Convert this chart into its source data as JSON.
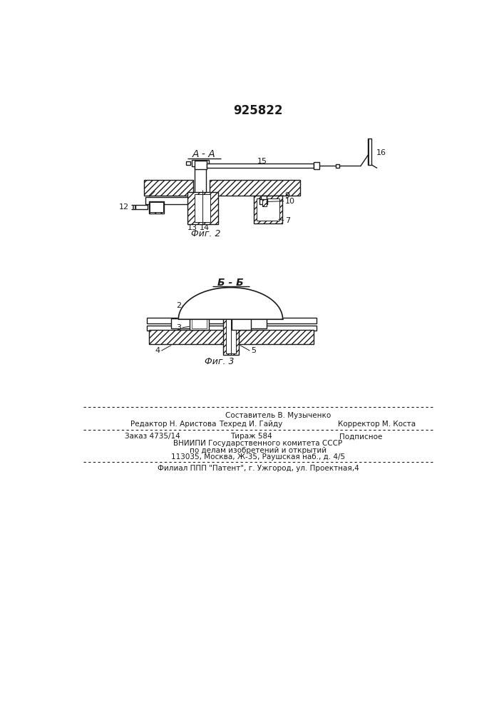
{
  "patent_number": "925822",
  "fig2_label": "А - А",
  "fig2_caption": "Фиг. 2",
  "fig3_label": "Б - Б",
  "fig3_caption": "Фиг. 3",
  "footer_comp": "Составитель В. Музыченко",
  "footer_editor": "Редактор Н. Аристова",
  "footer_tech": "Техред И. Гайду",
  "footer_corr": "Корректор М. Коста",
  "footer_order": "Заказ 4735/14",
  "footer_tirazh": "Тираж 584",
  "footer_podp": "Подписное",
  "footer_vniip1": "ВНИИПИ Государственного комитета СССР",
  "footer_vniip2": "по делам изобретений и открытий",
  "footer_addr": "113035, Москва, Ж-35, Раушская наб., д. 4/5",
  "footer_filial": "Филиал ППП \"Патент\", г. Ужгород, ул. Проектная,4",
  "bg_color": "#ffffff",
  "line_color": "#1a1a1a"
}
